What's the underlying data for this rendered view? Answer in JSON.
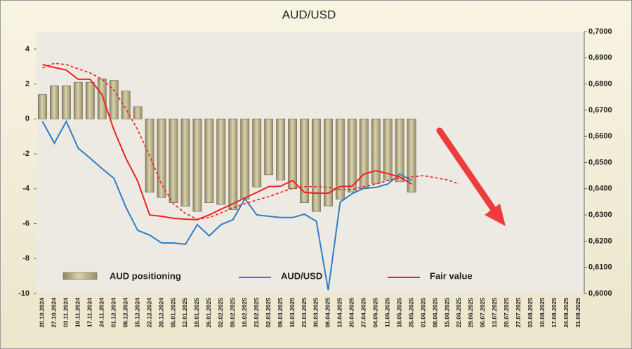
{
  "chart_data": {
    "type": "bar",
    "title": "AUD/USD",
    "categories": [
      "20.10.2024",
      "27.10.2024",
      "03.11.2024",
      "10.11.2024",
      "17.11.2024",
      "24.11.2024",
      "01.12.2024",
      "08.12.2024",
      "15.12.2024",
      "22.12.2024",
      "29.12.2024",
      "05.01.2025",
      "12.01.2025",
      "19.01.2025",
      "26.01.2025",
      "02.02.2025",
      "09.02.2025",
      "16.02.2025",
      "23.02.2025",
      "02.03.2025",
      "09.03.2025",
      "16.03.2025",
      "23.03.2025",
      "30.03.2025",
      "06.04.2025",
      "13.04.2025",
      "20.04.2025",
      "27.04.2025",
      "04.05.2025",
      "11.05.2025",
      "18.05.2025",
      "25.05.2025",
      "01.06.2025",
      "08.06.2025",
      "15.06.2025",
      "22.06.2025",
      "29.06.2025",
      "06.07.2025",
      "13.07.2025",
      "20.07.2025",
      "27.07.2025",
      "03.08.2025",
      "10.08.2025",
      "17.08.2025",
      "24.08.2025",
      "31.08.2025"
    ],
    "ylim": [
      -10,
      5
    ],
    "yticks": [
      -10,
      -8,
      -6,
      -4,
      -2,
      0,
      2,
      4
    ],
    "y2lim": [
      0.6,
      0.7
    ],
    "y2ticks": [
      {
        "value": 0.6,
        "label": "0,6000"
      },
      {
        "value": 0.61,
        "label": "0,6100"
      },
      {
        "value": 0.62,
        "label": "0,6200"
      },
      {
        "value": 0.63,
        "label": "0,6300"
      },
      {
        "value": 0.64,
        "label": "0,6400"
      },
      {
        "value": 0.65,
        "label": "0,6500"
      },
      {
        "value": 0.66,
        "label": "0,6600"
      },
      {
        "value": 0.67,
        "label": "0,6700"
      },
      {
        "value": 0.68,
        "label": "0,6800"
      },
      {
        "value": 0.69,
        "label": "0,6900"
      },
      {
        "value": 0.7,
        "label": "0,7000"
      }
    ],
    "series": [
      {
        "name": "AUD positioning",
        "type": "bar",
        "color": "#bdb58c",
        "values": [
          1.4,
          1.9,
          1.9,
          2.1,
          2.1,
          2.3,
          2.2,
          1.6,
          0.7,
          -4.2,
          -4.5,
          -4.8,
          -5.0,
          -5.3,
          -4.8,
          -4.9,
          -5.2,
          -4.6,
          -3.9,
          -3.2,
          -3.5,
          -4.0,
          -4.8,
          -5.3,
          -5.0,
          -4.6,
          -4.2,
          -4.0,
          -3.7,
          -3.5,
          -3.6,
          -4.2,
          null,
          null,
          null,
          null,
          null,
          null,
          null,
          null,
          null,
          null,
          null,
          null,
          null,
          null
        ]
      },
      {
        "name": "AUD/USD",
        "type": "line",
        "axis": "y2",
        "color": "#2f7fc8",
        "values": [
          0.6657,
          0.6574,
          0.6657,
          0.6555,
          0.6517,
          0.6477,
          0.644,
          0.633,
          0.6241,
          0.6223,
          0.6193,
          0.6193,
          0.6188,
          0.6263,
          0.622,
          0.6263,
          0.6282,
          0.6362,
          0.63,
          0.6295,
          0.629,
          0.629,
          0.6303,
          0.6276,
          0.6013,
          0.6349,
          0.6381,
          0.6402,
          0.6405,
          0.6418,
          0.6456,
          0.6432,
          null,
          null,
          null,
          null,
          null,
          null,
          null,
          null,
          null,
          null,
          null,
          null,
          null,
          null
        ]
      },
      {
        "name": "Fair value",
        "type": "line",
        "axis": "y2",
        "color": "#ee2222",
        "values": [
          0.6874,
          0.6863,
          0.6853,
          0.6818,
          0.6818,
          0.6759,
          0.6625,
          0.6517,
          0.6429,
          0.63,
          0.6295,
          0.6287,
          0.6284,
          0.6282,
          0.63,
          0.6322,
          0.6343,
          0.6365,
          0.6386,
          0.6408,
          0.641,
          0.6432,
          0.6386,
          0.6383,
          0.6383,
          0.6408,
          0.641,
          0.6456,
          0.6469,
          0.6458,
          0.6445,
          0.6418,
          null,
          null,
          null,
          null,
          null,
          null,
          null,
          null,
          null,
          null,
          null,
          null,
          null,
          null
        ]
      },
      {
        "type": "line",
        "axis": "y2",
        "dashed": true,
        "color": "#ee2222",
        "values": [
          0.6861,
          0.6879,
          0.6874,
          0.6858,
          0.6842,
          0.6818,
          0.6777,
          0.6705,
          0.6625,
          0.6525,
          0.6418,
          0.6343,
          0.6306,
          0.6284,
          0.629,
          0.6308,
          0.6327,
          0.6343,
          0.6357,
          0.637,
          0.6386,
          0.6402,
          0.6408,
          0.6408,
          0.6405,
          0.6397,
          0.6397,
          0.6408,
          0.6418,
          0.6432,
          0.644,
          0.6445,
          0.645,
          0.6442,
          0.6434,
          0.6418,
          null,
          null,
          null,
          null,
          null,
          null,
          null,
          null,
          null,
          null
        ]
      }
    ]
  }
}
